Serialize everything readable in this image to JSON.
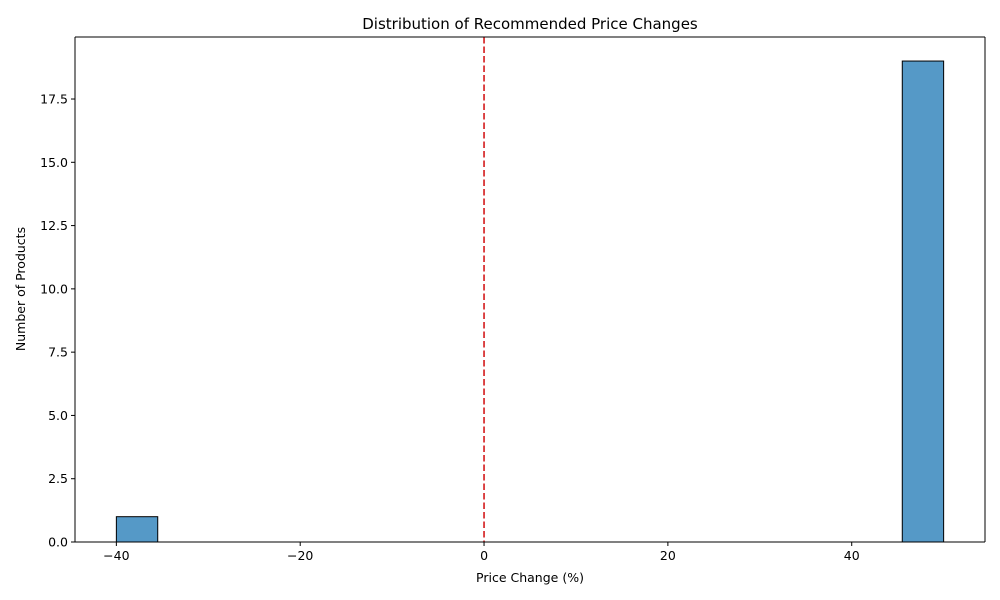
{
  "chart_data": {
    "type": "bar",
    "title": "Distribution of Recommended Price Changes",
    "xlabel": "Price Change (%)",
    "ylabel": "Number of Products",
    "xlim": [
      -44.5,
      54.5
    ],
    "ylim": [
      0,
      19.95
    ],
    "x_ticks": [
      -40,
      -20,
      0,
      20,
      40
    ],
    "x_tick_labels": [
      "−40",
      "−20",
      "0",
      "20",
      "40"
    ],
    "y_ticks": [
      0,
      2.5,
      5,
      7.5,
      10,
      12.5,
      15,
      17.5
    ],
    "y_tick_labels": [
      "0.0",
      "2.5",
      "5.0",
      "7.5",
      "10.0",
      "12.5",
      "15.0",
      "17.5"
    ],
    "bins": [
      {
        "x0": -40,
        "x1": -35.5,
        "count": 1
      },
      {
        "x0": -35.5,
        "x1": -31,
        "count": 0
      },
      {
        "x0": -31,
        "x1": -26.5,
        "count": 0
      },
      {
        "x0": -26.5,
        "x1": -22,
        "count": 0
      },
      {
        "x0": -22,
        "x1": -17.5,
        "count": 0
      },
      {
        "x0": -17.5,
        "x1": -13,
        "count": 0
      },
      {
        "x0": -13,
        "x1": -8.5,
        "count": 0
      },
      {
        "x0": -8.5,
        "x1": -4,
        "count": 0
      },
      {
        "x0": -4,
        "x1": 0.5,
        "count": 0
      },
      {
        "x0": 0.5,
        "x1": 5,
        "count": 0
      },
      {
        "x0": 5,
        "x1": 9.5,
        "count": 0
      },
      {
        "x0": 9.5,
        "x1": 14,
        "count": 0
      },
      {
        "x0": 14,
        "x1": 18.5,
        "count": 0
      },
      {
        "x0": 18.5,
        "x1": 23,
        "count": 0
      },
      {
        "x0": 23,
        "x1": 27.5,
        "count": 0
      },
      {
        "x0": 27.5,
        "x1": 32,
        "count": 0
      },
      {
        "x0": 32,
        "x1": 36.5,
        "count": 0
      },
      {
        "x0": 36.5,
        "x1": 41,
        "count": 0
      },
      {
        "x0": 41,
        "x1": 45.5,
        "count": 0
      },
      {
        "x0": 45.5,
        "x1": 50,
        "count": 19
      }
    ],
    "reference_line": {
      "x": 0,
      "color": "#d62728",
      "style": "dashed"
    },
    "bar_color": "#5599c7",
    "bar_edge_color": "#000000",
    "grid": false,
    "legend": "none"
  }
}
